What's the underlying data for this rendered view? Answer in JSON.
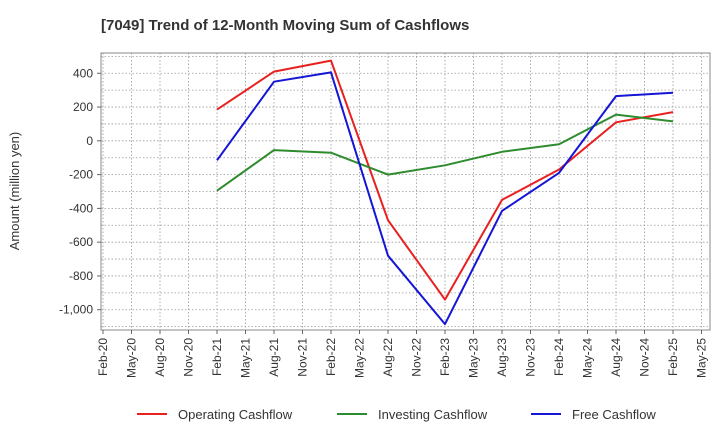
{
  "chart_data": {
    "type": "line",
    "title": "[7049]  Trend of 12-Month Moving Sum of Cashflows",
    "ylabel": "Amount (million yen)",
    "xlabel": "",
    "x_ticks": [
      "Feb-20",
      "May-20",
      "Aug-20",
      "Nov-20",
      "Feb-21",
      "May-21",
      "Aug-21",
      "Nov-21",
      "Feb-22",
      "May-22",
      "Aug-22",
      "Nov-22",
      "Feb-23",
      "May-23",
      "Aug-23",
      "Nov-23",
      "Feb-24",
      "May-24",
      "Aug-24",
      "Nov-24",
      "Feb-25",
      "May-25"
    ],
    "y_ticks": [
      400,
      200,
      0,
      -200,
      -400,
      -600,
      -800,
      -1000
    ],
    "y_tick_labels": [
      "400",
      "200",
      "0",
      "-200",
      "-400",
      "-600",
      "-800",
      "-1,000"
    ],
    "ylim": [
      -1120,
      520
    ],
    "grid": true,
    "legend_position": "bottom",
    "x": [
      "Feb-21",
      "Aug-21",
      "Feb-22",
      "Aug-22",
      "Feb-23",
      "Aug-23",
      "Feb-24",
      "Aug-24",
      "Feb-25"
    ],
    "series": [
      {
        "name": "Operating Cashflow",
        "color": "#e8201f",
        "values": [
          185,
          410,
          475,
          -470,
          -940,
          -350,
          -170,
          110,
          170
        ]
      },
      {
        "name": "Investing Cashflow",
        "color": "#2e8b2e",
        "values": [
          -295,
          -55,
          -70,
          -200,
          -145,
          -65,
          -20,
          155,
          115
        ]
      },
      {
        "name": "Free Cashflow",
        "color": "#1515d6",
        "values": [
          -115,
          350,
          405,
          -680,
          -1085,
          -415,
          -190,
          265,
          285
        ]
      }
    ]
  }
}
